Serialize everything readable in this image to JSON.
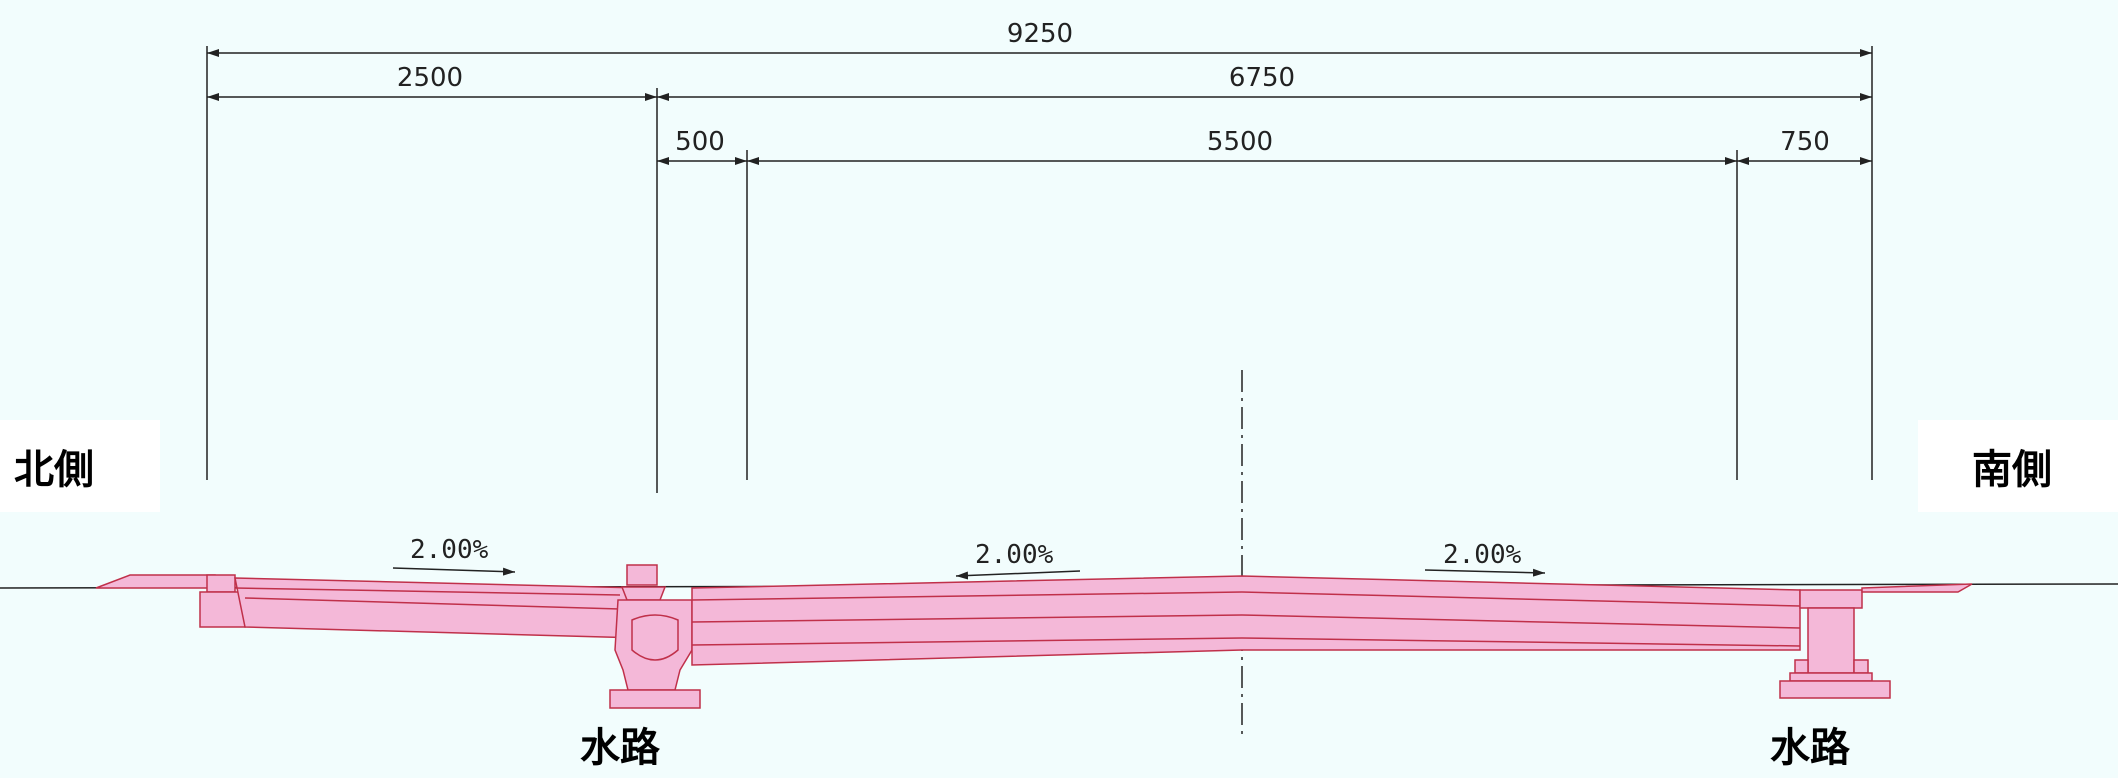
{
  "dimensions": {
    "total": "9250",
    "left": "2500",
    "right": "6750",
    "seg_a": "500",
    "seg_b": "5500",
    "seg_c": "750"
  },
  "slopes": {
    "left": "2.00%",
    "center": "2.00%",
    "right": "2.00%"
  },
  "labels": {
    "north": "北側",
    "south": "南側",
    "channel_left": "水路",
    "channel_right": "水路"
  },
  "colors": {
    "structure_fill": "#f4b8d8",
    "structure_stroke": "#c0304a",
    "dimension_line": "#222222",
    "background": "#f2fdfd"
  }
}
